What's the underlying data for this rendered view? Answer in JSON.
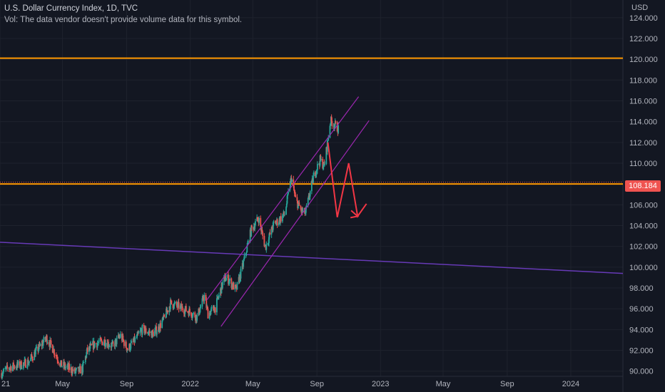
{
  "legend": {
    "title": "U.S. Dollar Currency Index, 1D, TVC",
    "volume_note": "Vol: The data vendor doesn't provide volume data for this symbol."
  },
  "last_price_label": "108.184",
  "colors": {
    "background": "#131722",
    "grid": "#1e222d",
    "up": "#26a69a",
    "down": "#ef5350",
    "horizontal_line": "#ff9800",
    "channel": "#9c27b0",
    "trendline": "#673ab7",
    "projection": "#f23645"
  },
  "chart_data": {
    "type": "candlestick",
    "title": "U.S. Dollar Currency Index, 1D, TVC",
    "y_axis": {
      "unit": "USD",
      "ticks": [
        "124.000",
        "122.000",
        "120.000",
        "118.000",
        "116.000",
        "114.000",
        "112.000",
        "110.000",
        "108.000",
        "106.000",
        "104.000",
        "102.000",
        "100.000",
        "98.000",
        "96.000",
        "94.000",
        "92.000",
        "90.000"
      ],
      "range": [
        89.5,
        125.7
      ]
    },
    "x_axis": {
      "ticks": [
        "21",
        "May",
        "Sep",
        "2022",
        "May",
        "Sep",
        "2023",
        "May",
        "Sep",
        "2024"
      ],
      "tick_dates": [
        "2021-01-01",
        "2021-05-01",
        "2021-09-01",
        "2022-01-01",
        "2022-05-01",
        "2022-09-01",
        "2023-01-01",
        "2023-05-01",
        "2023-09-01",
        "2024-01-01"
      ],
      "range": [
        "2021-01-01",
        "2024-04-10"
      ]
    },
    "grid": true,
    "last_price": 108.184,
    "price_path": [
      [
        "2021-01-04",
        89.8
      ],
      [
        "2021-01-20",
        90.4
      ],
      [
        "2021-02-10",
        90.6
      ],
      [
        "2021-02-25",
        90.9
      ],
      [
        "2021-03-10",
        91.8
      ],
      [
        "2021-03-31",
        93.2
      ],
      [
        "2021-04-12",
        92.2
      ],
      [
        "2021-04-28",
        90.6
      ],
      [
        "2021-05-12",
        90.3
      ],
      [
        "2021-05-25",
        89.9
      ],
      [
        "2021-06-08",
        90.2
      ],
      [
        "2021-06-17",
        91.9
      ],
      [
        "2021-07-01",
        92.6
      ],
      [
        "2021-07-20",
        92.9
      ],
      [
        "2021-08-05",
        92.4
      ],
      [
        "2021-08-20",
        93.4
      ],
      [
        "2021-09-03",
        92.1
      ],
      [
        "2021-09-20",
        93.2
      ],
      [
        "2021-10-01",
        94.0
      ],
      [
        "2021-10-20",
        93.6
      ],
      [
        "2021-11-01",
        94.1
      ],
      [
        "2021-11-12",
        95.1
      ],
      [
        "2021-11-24",
        96.5
      ],
      [
        "2021-12-10",
        96.2
      ],
      [
        "2021-12-31",
        95.7
      ],
      [
        "2022-01-14",
        95.2
      ],
      [
        "2022-01-28",
        97.2
      ],
      [
        "2022-02-04",
        95.5
      ],
      [
        "2022-02-18",
        96.1
      ],
      [
        "2022-03-07",
        98.9
      ],
      [
        "2022-03-14",
        98.9
      ],
      [
        "2022-03-30",
        97.8
      ],
      [
        "2022-04-12",
        100.2
      ],
      [
        "2022-04-28",
        103.6
      ],
      [
        "2022-05-12",
        104.7
      ],
      [
        "2022-05-25",
        101.9
      ],
      [
        "2022-06-10",
        104.1
      ],
      [
        "2022-06-20",
        104.5
      ],
      [
        "2022-07-01",
        105.1
      ],
      [
        "2022-07-14",
        108.6
      ],
      [
        "2022-07-22",
        106.5
      ],
      [
        "2022-08-02",
        105.4
      ],
      [
        "2022-08-10",
        105.2
      ],
      [
        "2022-08-26",
        108.8
      ],
      [
        "2022-09-07",
        110.3
      ],
      [
        "2022-09-15",
        109.7
      ],
      [
        "2022-09-27",
        114.1
      ],
      [
        "2022-10-12",
        113.3
      ]
    ],
    "annotations": {
      "horizontal_lines": [
        120.1,
        108.0
      ],
      "channel": {
        "lower": [
          [
            "2022-03-01",
            94.3
          ],
          [
            "2022-12-10",
            114.1
          ]
        ],
        "upper": [
          [
            "2022-02-01",
            96.8
          ],
          [
            "2022-11-20",
            116.4
          ]
        ]
      },
      "trendline": [
        [
          "2021-01-01",
          102.4
        ],
        [
          "2024-04-10",
          99.4
        ]
      ],
      "projection_zigzag": [
        [
          "2022-09-22",
          112.0
        ],
        [
          "2022-10-10",
          104.8
        ],
        [
          "2022-11-01",
          110.0
        ],
        [
          "2022-11-18",
          104.9
        ],
        [
          "2022-12-05",
          106.1
        ]
      ]
    }
  }
}
